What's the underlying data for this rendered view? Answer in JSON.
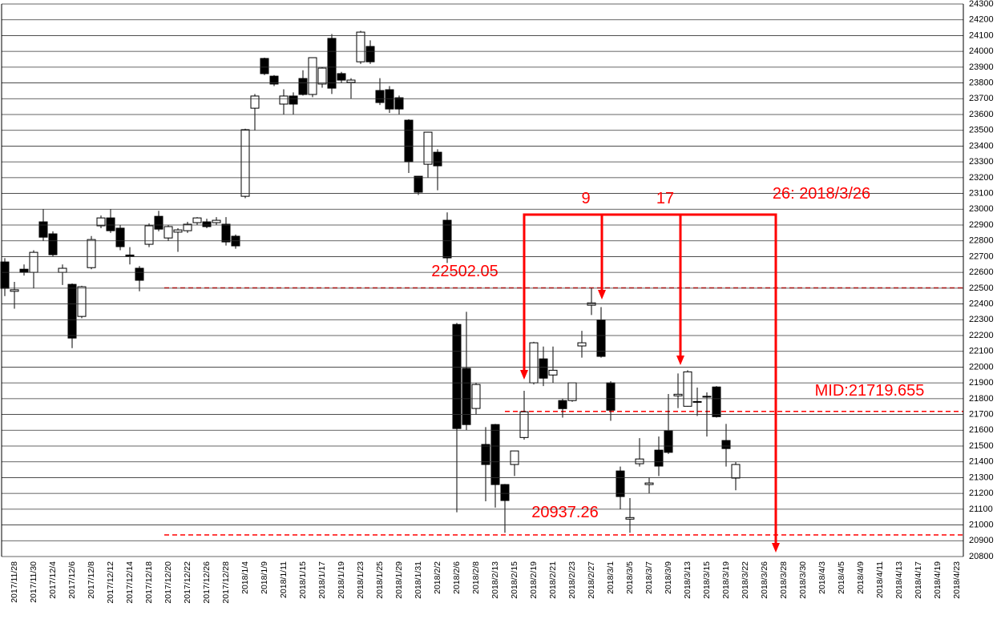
{
  "chart_data": {
    "type": "candlestick",
    "categories": [
      null,
      "2017/11/28",
      null,
      "2017/11/30",
      null,
      "2017/12/4",
      null,
      "2017/12/6",
      null,
      "2017/12/8",
      null,
      "2017/12/12",
      null,
      "2017/12/14",
      null,
      "2017/12/18",
      null,
      "2017/12/20",
      null,
      "2017/12/22",
      null,
      "2017/12/26",
      null,
      "2017/12/28",
      null,
      "2018/1/4",
      null,
      "2018/1/9",
      null,
      "2018/1/11",
      null,
      "2018/1/15",
      null,
      "2018/1/17",
      null,
      "2018/1/19",
      null,
      "2018/1/23",
      null,
      "2018/1/25",
      null,
      "2018/1/29",
      null,
      "2018/1/31",
      null,
      "2018/2/2",
      null,
      "2018/2/6",
      null,
      "2018/2/8",
      null,
      "2018/2/13",
      null,
      "2018/2/15",
      null,
      "2018/2/19",
      null,
      "2018/2/21",
      null,
      "2018/2/23",
      null,
      "2018/2/27",
      null,
      "2018/3/1",
      null,
      "2018/3/5",
      null,
      "2018/3/7",
      null,
      "2018/3/9",
      null,
      "2018/3/13",
      null,
      "2018/3/15",
      null,
      "2018/3/19",
      null,
      "2018/3/22",
      null,
      "2018/3/26",
      null,
      "2018/3/28",
      null,
      "2018/3/30",
      null,
      "2018/4/3",
      null,
      "2018/4/5",
      null,
      "2018/4/9",
      null,
      "2018/4/11",
      null,
      "2018/4/13",
      null,
      "2018/4/17",
      null,
      "2018/4/19",
      null,
      "2018/4/23"
    ],
    "open": [
      22666,
      22480,
      22620,
      22600,
      22920,
      22844,
      22600,
      22524,
      22321,
      22630,
      22895,
      22945,
      22880,
      22710,
      22626,
      22778,
      22955,
      22818,
      22855,
      22864,
      22915,
      22920,
      22915,
      22905,
      22829,
      23082,
      23640,
      23955,
      23843,
      23666,
      23717,
      23828,
      23727,
      23793,
      24082,
      23859,
      23803,
      23934,
      24031,
      23752,
      23757,
      23706,
      23564,
      23209,
      23285,
      23361,
      22930,
      22270,
      21992,
      21738,
      21510,
      21636,
      21256,
      21383,
      21554,
      21900,
      22052,
      21950,
      21788,
      21788,
      22134,
      22392,
      22296,
      21900,
      21342,
      21037,
      21388,
      21256,
      21474,
      21595,
      21818,
      21752,
      21782,
      21815,
      21874,
      21535,
      21297,
      null,
      null,
      null,
      null,
      null,
      null,
      null,
      null,
      null,
      null,
      null,
      null,
      null,
      null,
      null,
      null,
      null,
      null,
      null,
      null,
      null,
      null,
      null
    ],
    "high": [
      22690,
      22540,
      22650,
      22740,
      23000,
      22860,
      22650,
      22530,
      22515,
      22830,
      22960,
      23000,
      22900,
      22760,
      22640,
      22910,
      22990,
      22900,
      22880,
      22920,
      22950,
      22940,
      22950,
      22950,
      22840,
      23510,
      23730,
      23960,
      23850,
      23760,
      23740,
      23880,
      23960,
      23900,
      24110,
      23870,
      23830,
      24130,
      24070,
      23830,
      23780,
      23720,
      23570,
      23210,
      23490,
      23380,
      22980,
      22280,
      22350,
      21900,
      21620,
      21640,
      21260,
      21470,
      21850,
      22160,
      22130,
      22130,
      21800,
      21900,
      22230,
      22500,
      22380,
      21910,
      21370,
      21170,
      21550,
      21300,
      21560,
      21830,
      21960,
      21980,
      21870,
      21840,
      21880,
      21640,
      21400,
      null,
      null,
      null,
      null,
      null,
      null,
      null,
      null,
      null,
      null,
      null,
      null,
      null,
      null,
      null,
      null,
      null,
      null,
      null,
      null,
      null,
      null,
      null
    ],
    "low": [
      22450,
      22370,
      22580,
      22500,
      22800,
      22700,
      22520,
      22120,
      22310,
      22620,
      22880,
      22850,
      22740,
      22650,
      22480,
      22760,
      22860,
      22800,
      22730,
      22850,
      22900,
      22880,
      22900,
      22770,
      22750,
      23070,
      23500,
      23850,
      23780,
      23600,
      23600,
      23720,
      23710,
      23770,
      23730,
      23800,
      23700,
      23920,
      23920,
      23660,
      23610,
      23600,
      23230,
      23090,
      23200,
      23120,
      22660,
      21080,
      21600,
      21700,
      21150,
      21110,
      20950,
      21310,
      21540,
      21890,
      21880,
      21900,
      21680,
      21780,
      22060,
      22330,
      22060,
      21660,
      21100,
      20950,
      21370,
      21200,
      21310,
      21450,
      21740,
      21750,
      21690,
      21560,
      21680,
      21370,
      21220,
      null,
      null,
      null,
      null,
      null,
      null,
      null,
      null,
      null,
      null,
      null,
      null,
      null,
      null,
      null,
      null,
      null,
      null,
      null,
      null,
      null,
      null,
      null
    ],
    "close": [
      22499,
      22490,
      22600,
      22727,
      22823,
      22712,
      22626,
      22184,
      22509,
      22808,
      22945,
      22864,
      22763,
      22700,
      22550,
      22895,
      22874,
      22890,
      22869,
      22905,
      22945,
      22890,
      22930,
      22793,
      22768,
      23504,
      23717,
      23859,
      23793,
      23717,
      23666,
      23727,
      23960,
      23894,
      23767,
      23818,
      23818,
      24122,
      23934,
      23676,
      23635,
      23635,
      23300,
      23108,
      23488,
      23275,
      22692,
      21611,
      21636,
      21890,
      21383,
      21256,
      21155,
      21469,
      21717,
      22154,
      21930,
      21980,
      21737,
      21900,
      22154,
      22407,
      22068,
      21727,
      21180,
      21047,
      21418,
      21266,
      21373,
      21460,
      21828,
      21970,
      21782,
      21815,
      21686,
      21484,
      21383,
      null,
      null,
      null,
      null,
      null,
      null,
      null,
      null,
      null,
      null,
      null,
      null,
      null,
      null,
      null,
      null,
      null,
      null,
      null,
      null,
      null,
      null,
      null
    ],
    "ylim": [
      20800,
      24300
    ],
    "yticks": [
      20800,
      20900,
      21000,
      21100,
      21200,
      21300,
      21400,
      21500,
      21600,
      21700,
      21800,
      21900,
      22000,
      22100,
      22200,
      22300,
      22400,
      22500,
      22600,
      22700,
      22800,
      22900,
      23000,
      23100,
      23200,
      23300,
      23400,
      23500,
      23600,
      23700,
      23800,
      23900,
      24000,
      24100,
      24200,
      24300
    ],
    "grid": true,
    "hlines": [
      {
        "value": 22502.05,
        "label": "22502.05"
      },
      {
        "value": 21719.655,
        "label": "MID:21719.655"
      },
      {
        "value": 20937.26,
        "label": "20937.26"
      }
    ],
    "arrow_labels": [
      "9",
      "17",
      "26: 2018/3/26"
    ],
    "annotation_color": "#ff0000"
  }
}
